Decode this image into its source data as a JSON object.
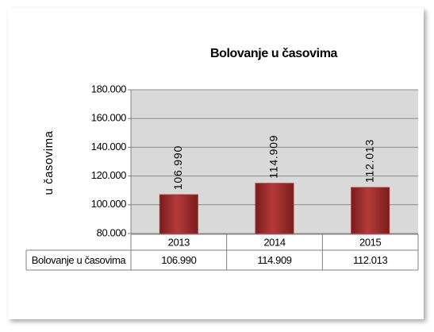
{
  "chart_data": {
    "type": "bar",
    "title": "Bolovanje u časovima",
    "y_axis_label": "u časovima",
    "categories": [
      "2013",
      "2014",
      "2015"
    ],
    "series": [
      {
        "name": "Bolovanje u časovima",
        "color": "#a83232",
        "values": [
          106990,
          114909,
          112013
        ],
        "value_labels": [
          "106.990",
          "114.909",
          "112.013"
        ]
      }
    ],
    "ylim": [
      80000,
      180000
    ],
    "yticks": [
      {
        "value": 80000,
        "label": "80.000"
      },
      {
        "value": 100000,
        "label": "100.000"
      },
      {
        "value": 120000,
        "label": "120.000"
      },
      {
        "value": 140000,
        "label": "140.000"
      },
      {
        "value": 160000,
        "label": "160.000"
      },
      {
        "value": 180000,
        "label": "180.000"
      }
    ],
    "grid": true,
    "data_table": true
  }
}
